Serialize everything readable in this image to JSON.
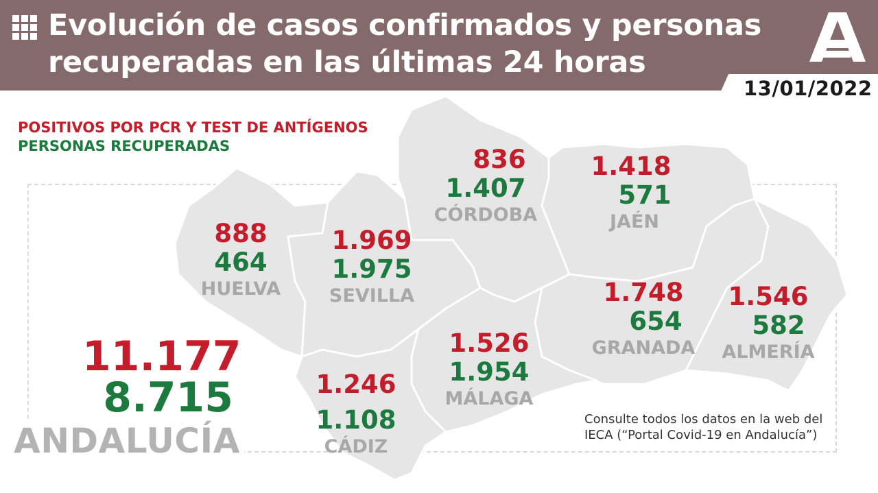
{
  "header": {
    "title_line1": "Evolución de casos confirmados y personas",
    "title_line2": "recuperadas en las últimas 24 horas",
    "date": "13/01/2022"
  },
  "legend": {
    "positives": "POSITIVOS POR PCR Y TEST DE ANTÍGENOS",
    "recovered": "PERSONAS RECUPERADAS"
  },
  "colors": {
    "header_bg": "#846a6b",
    "positives": "#c31c2a",
    "recovered": "#1c7a3e",
    "map_fill": "#e6e6e6",
    "province_name": "#a8a8a8"
  },
  "provinces": {
    "huelva": {
      "name": "HUELVA",
      "positives": "888",
      "recovered": "464"
    },
    "sevilla": {
      "name": "SEVILLA",
      "positives": "1.969",
      "recovered": "1.975"
    },
    "cordoba": {
      "name": "CÓRDOBA",
      "positives": "836",
      "recovered": "1.407"
    },
    "jaen": {
      "name": "JAÉN",
      "positives": "1.418",
      "recovered": "571"
    },
    "granada": {
      "name": "GRANADA",
      "positives": "1.748",
      "recovered": "654"
    },
    "almeria": {
      "name": "ALMERÍA",
      "positives": "1.546",
      "recovered": "582"
    },
    "malaga": {
      "name": "MÁLAGA",
      "positives": "1.526",
      "recovered": "1.954"
    },
    "cadiz": {
      "name": "CÁDIZ",
      "positives": "1.246",
      "recovered": "1.108"
    }
  },
  "total": {
    "name": "ANDALUCÍA",
    "positives": "11.177",
    "recovered": "8.715"
  },
  "footnote": {
    "line1": "Consulte todos los datos en la web del",
    "line2": "IECA (“Portal Covid-19 en Andalucía”)"
  },
  "icons": [
    "grid-icon",
    "junta-andalucia-logo"
  ]
}
